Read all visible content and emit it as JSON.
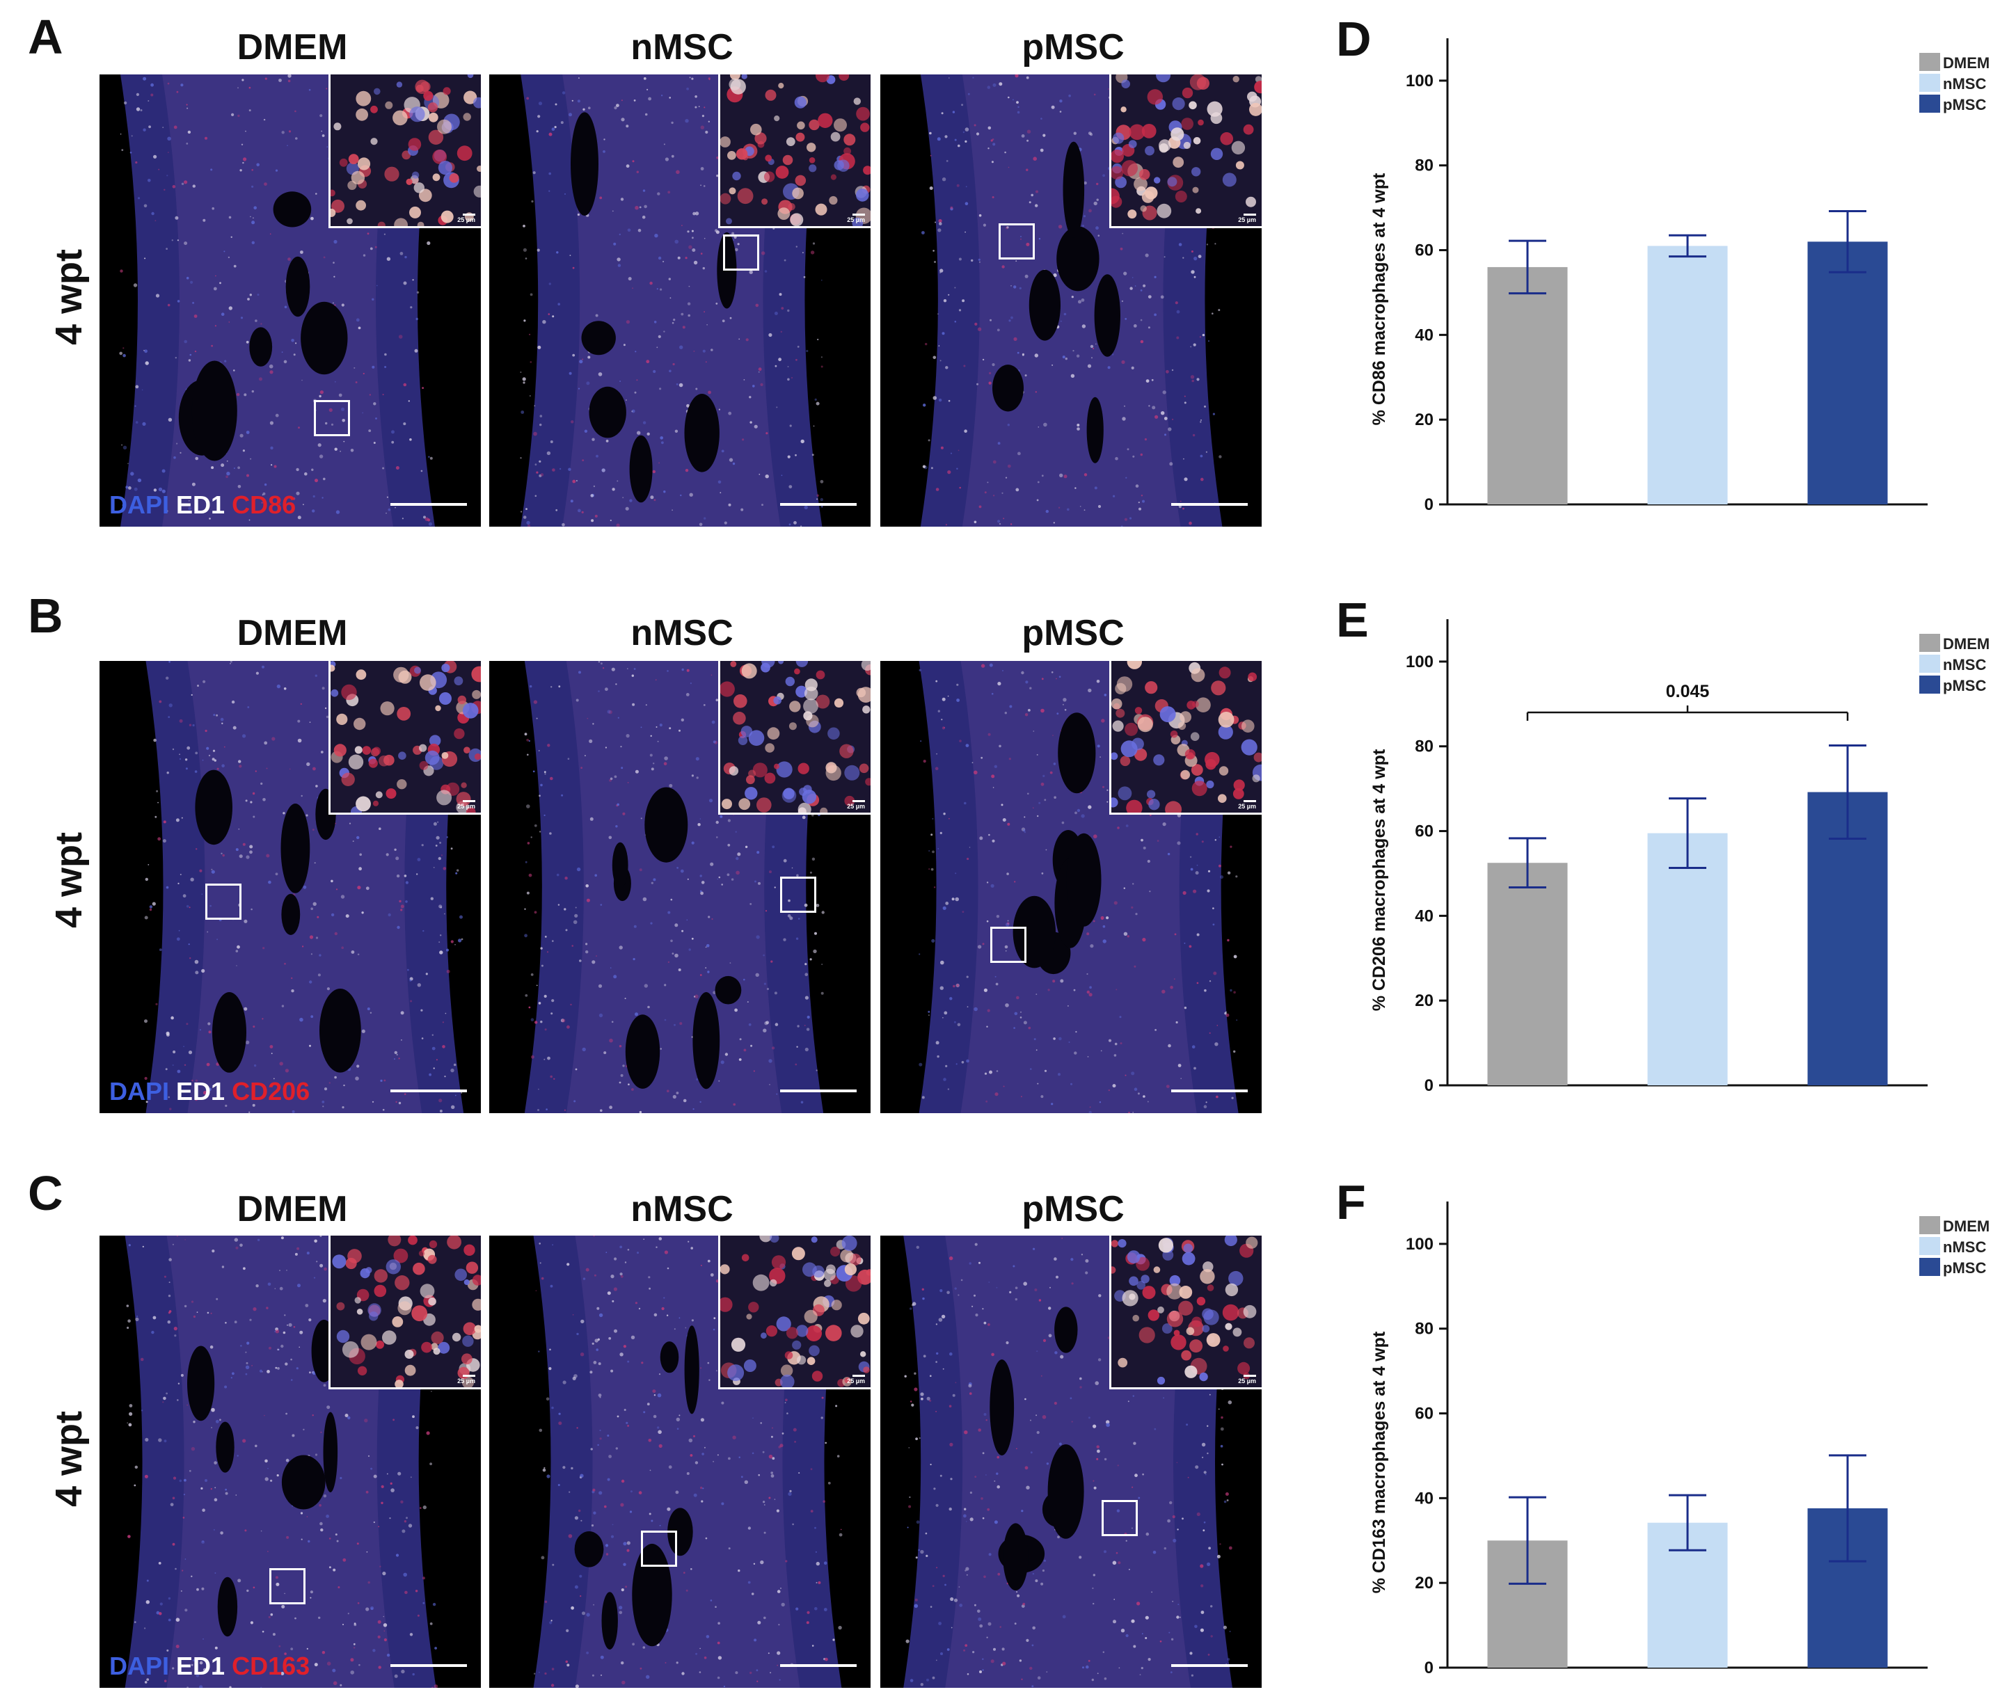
{
  "panels": {
    "A": {
      "letter": "A",
      "row_label": "4 wpt",
      "titles": [
        "DMEM",
        "nMSC",
        "pMSC"
      ],
      "stain": [
        "DAPI",
        "ED1",
        "CD86"
      ]
    },
    "B": {
      "letter": "B",
      "row_label": "4 wpt",
      "titles": [
        "DMEM",
        "nMSC",
        "pMSC"
      ],
      "stain": [
        "DAPI",
        "ED1",
        "CD206"
      ]
    },
    "C": {
      "letter": "C",
      "row_label": "4 wpt",
      "titles": [
        "DMEM",
        "nMSC",
        "pMSC"
      ],
      "stain": [
        "DAPI",
        "ED1",
        "CD163"
      ]
    }
  },
  "inset_scale": "25 µm",
  "chart_data": [
    {
      "letter": "D",
      "type": "bar",
      "categories": [
        "DMEM",
        "nMSC",
        "pMSC"
      ],
      "values": [
        56,
        61,
        62
      ],
      "errors": [
        6.2,
        2.5,
        7.2
      ],
      "colors": [
        "#a6a6a6",
        "#c5ddf4",
        "#2a4a94"
      ],
      "ylabel": "% CD86 macrophages at 4 wpt",
      "ylim": [
        0,
        110
      ],
      "yticks": [
        0,
        20,
        40,
        60,
        80,
        100
      ],
      "legend": [
        "DMEM",
        "nMSC",
        "pMSC"
      ],
      "legend_position": "top-right",
      "annotation": null
    },
    {
      "letter": "E",
      "type": "bar",
      "categories": [
        "DMEM",
        "nMSC",
        "pMSC"
      ],
      "values": [
        52.5,
        59.5,
        69.2
      ],
      "errors": [
        5.8,
        8.2,
        11
      ],
      "colors": [
        "#a6a6a6",
        "#c5ddf4",
        "#2a4a94"
      ],
      "ylabel": "% CD206 macrophages at 4 wpt",
      "ylim": [
        0,
        110
      ],
      "yticks": [
        0,
        20,
        40,
        60,
        80,
        100
      ],
      "legend": [
        "DMEM",
        "nMSC",
        "pMSC"
      ],
      "legend_position": "top-right",
      "annotation": {
        "text": "0.045",
        "from": 0,
        "to": 2,
        "y": 88
      }
    },
    {
      "letter": "F",
      "type": "bar",
      "categories": [
        "DMEM",
        "nMSC",
        "pMSC"
      ],
      "values": [
        30,
        34.2,
        37.6
      ],
      "errors": [
        10.2,
        6.5,
        12.5
      ],
      "colors": [
        "#a6a6a6",
        "#c5ddf4",
        "#2a4a94"
      ],
      "ylabel": "% CD163 macrophages at 4 wpt",
      "ylim": [
        0,
        110
      ],
      "yticks": [
        0,
        20,
        40,
        60,
        80,
        100
      ],
      "legend": [
        "DMEM",
        "nMSC",
        "pMSC"
      ],
      "legend_position": "top-right",
      "annotation": null
    }
  ]
}
